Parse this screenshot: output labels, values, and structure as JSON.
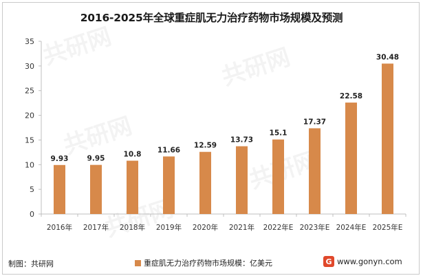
{
  "title": "2016-2025年全球重症肌无力治疗药物市场规模及预测",
  "source_label": "制图：共研网",
  "legend_label": "重症肌无力治疗药物市场规模：亿美元",
  "website": "www.gonyn.com",
  "logo_glyph": "G",
  "watermark_text": "共研网",
  "colors": {
    "bar": "#D7894A",
    "axis": "#bfbfbf",
    "logo": "#e0482b"
  },
  "chart_data": {
    "type": "bar",
    "title": "2016-2025年全球重症肌无力治疗药物市场规模及预测",
    "categories": [
      "2016年",
      "2017年",
      "2018年",
      "2019年",
      "2020年",
      "2021年",
      "2022年E",
      "2023年E",
      "2024年E",
      "2025年E"
    ],
    "values": [
      9.93,
      9.95,
      10.8,
      11.66,
      12.59,
      13.73,
      15.1,
      17.37,
      22.58,
      30.48
    ],
    "value_labels": [
      "9.93",
      "9.95",
      "10.8",
      "11.66",
      "12.59",
      "13.73",
      "15.1",
      "17.37",
      "22.58",
      "30.48"
    ],
    "series": [
      {
        "name": "重症肌无力治疗药物市场规模：亿美元",
        "values": [
          9.93,
          9.95,
          10.8,
          11.66,
          12.59,
          13.73,
          15.1,
          17.37,
          22.58,
          30.48
        ]
      }
    ],
    "yticks": [
      0,
      5,
      10,
      15,
      20,
      25,
      30,
      35
    ],
    "ylim": [
      0,
      35
    ],
    "xlabel": "",
    "ylabel": "",
    "grid": false,
    "legend_position": "bottom"
  }
}
